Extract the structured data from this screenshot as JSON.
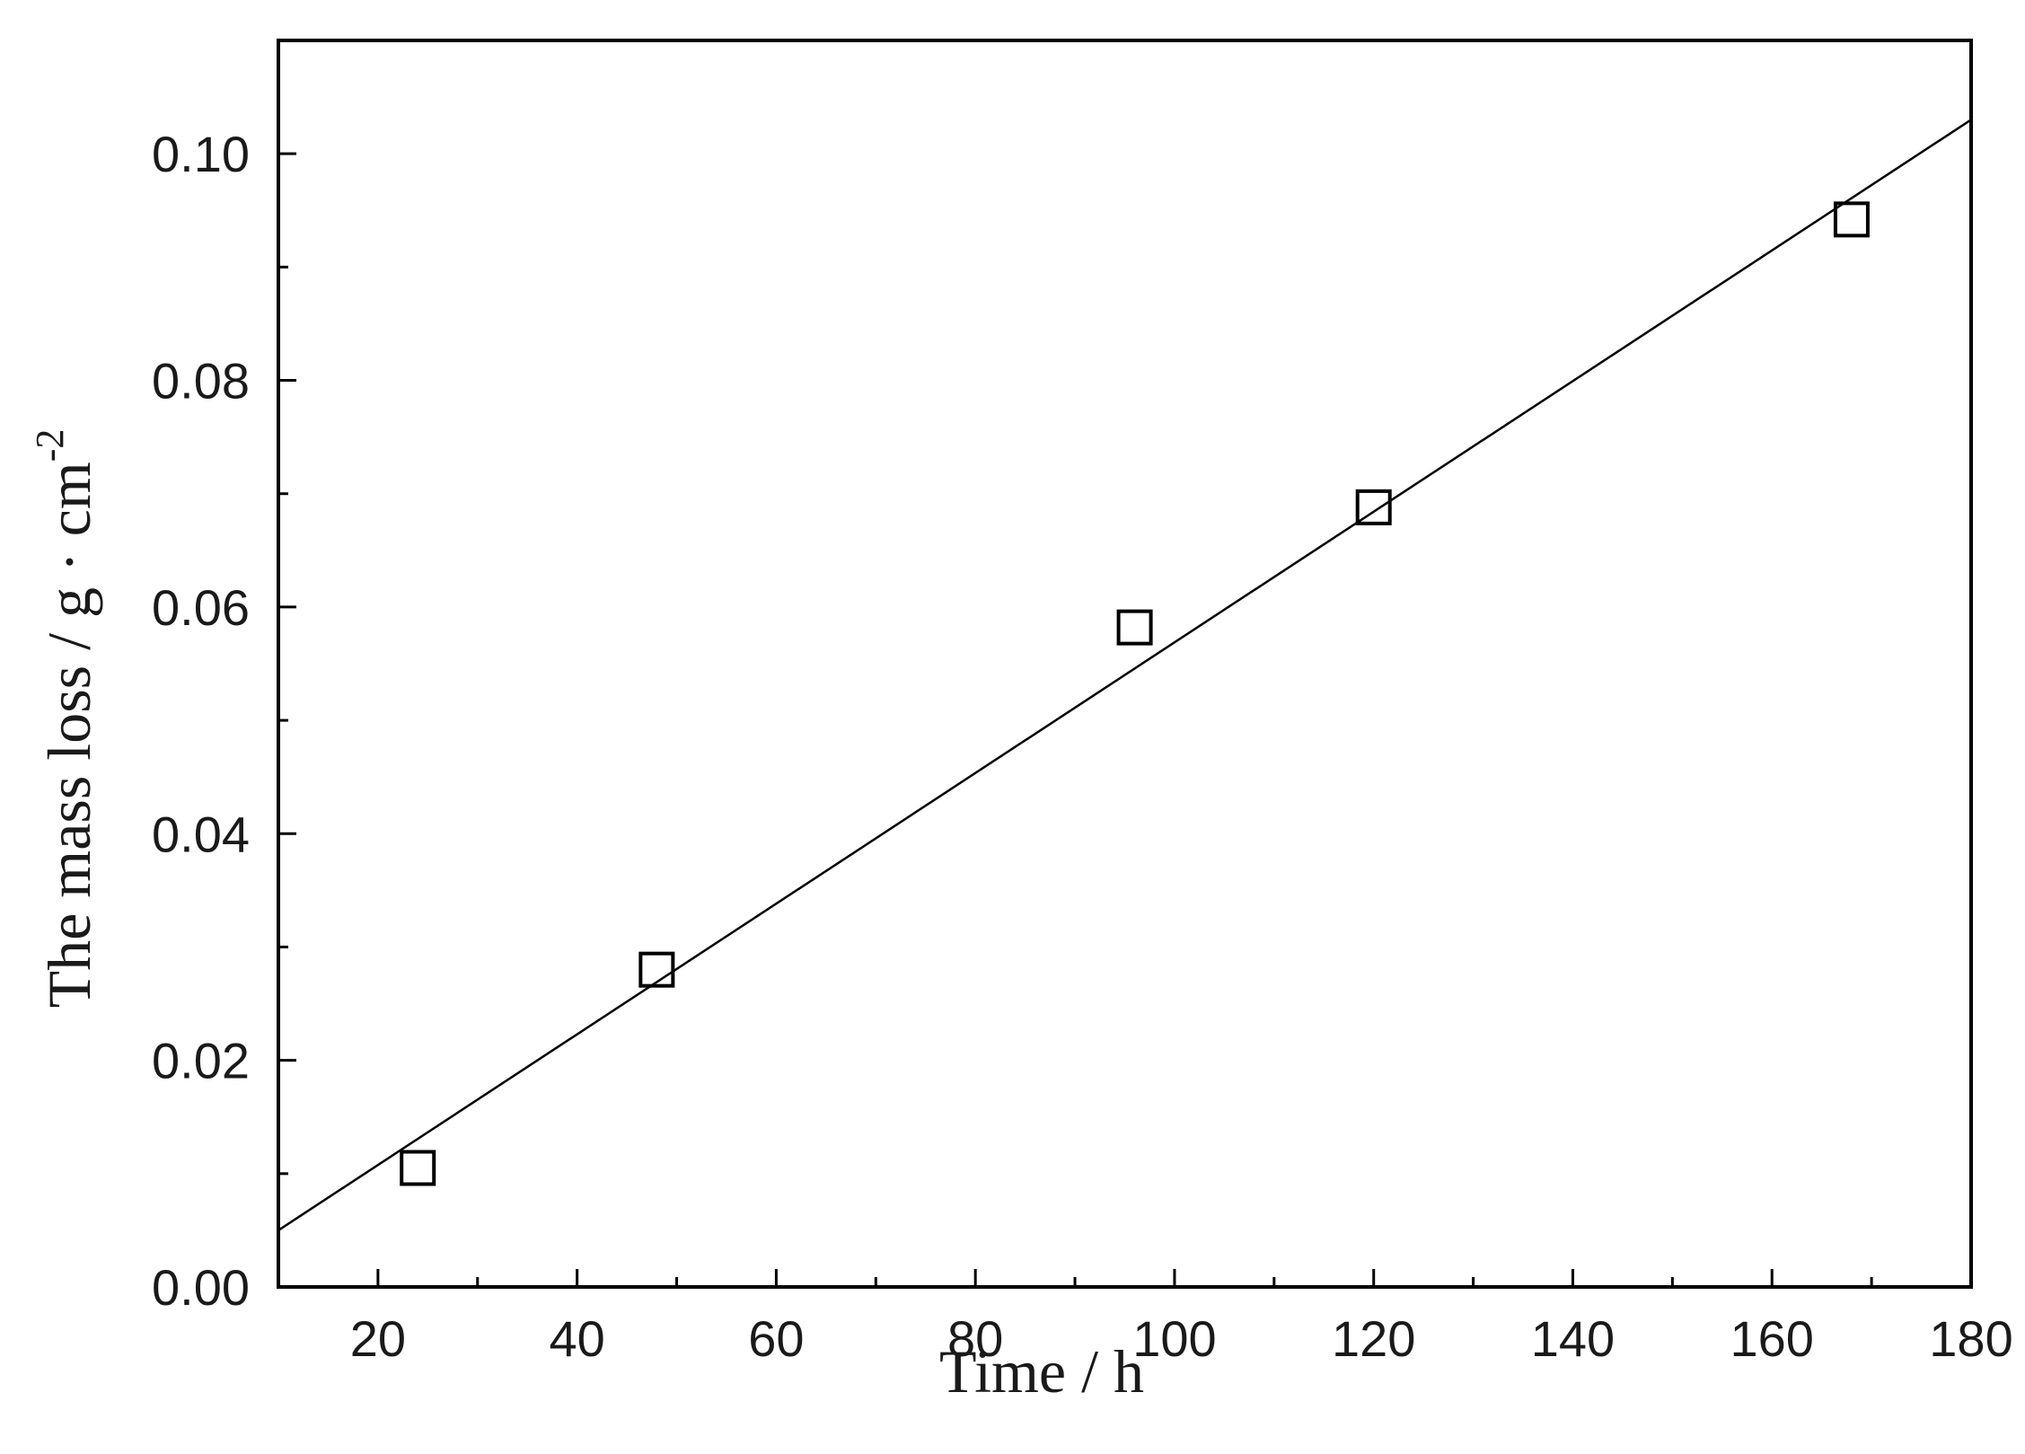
{
  "chart_data": {
    "type": "scatter",
    "xlabel": "Time / h",
    "ylabel_main": "The mass loss / g · cm",
    "ylabel_sup": "-2",
    "xlim": [
      10,
      180
    ],
    "ylim": [
      0.0,
      0.11
    ],
    "x_ticks": [
      20,
      40,
      60,
      80,
      100,
      120,
      140,
      160,
      180
    ],
    "x_tick_labels": [
      "20",
      "40",
      "60",
      "80",
      "100",
      "120",
      "140",
      "160",
      "180"
    ],
    "y_ticks": [
      0.0,
      0.02,
      0.04,
      0.06,
      0.08,
      0.1
    ],
    "y_tick_labels": [
      "0.00",
      "0.02",
      "0.04",
      "0.06",
      "0.08",
      "0.10"
    ],
    "grid": false,
    "series": [
      {
        "marker": "open-square",
        "points": [
          {
            "x": 24,
            "y": 0.0105
          },
          {
            "x": 48,
            "y": 0.028
          },
          {
            "x": 96,
            "y": 0.0582
          },
          {
            "x": 120,
            "y": 0.0688
          },
          {
            "x": 168,
            "y": 0.0942
          }
        ]
      }
    ],
    "fit_line": {
      "x": [
        10,
        180
      ],
      "y": [
        0.005,
        0.103
      ]
    }
  }
}
